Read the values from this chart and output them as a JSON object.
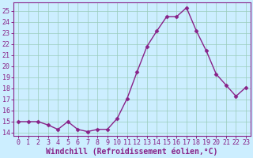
{
  "x": [
    0,
    1,
    2,
    3,
    4,
    5,
    6,
    7,
    8,
    9,
    10,
    11,
    12,
    13,
    14,
    15,
    16,
    17,
    18,
    19,
    20,
    21,
    22,
    23
  ],
  "y": [
    15,
    15,
    15,
    14.7,
    14.3,
    15,
    14.3,
    14.1,
    14.3,
    14.3,
    15.3,
    17.1,
    19.5,
    21.8,
    23.2,
    24.5,
    24.5,
    25.3,
    23.2,
    21.4,
    19.3,
    18.3,
    17.3,
    18.1
  ],
  "line_color": "#882288",
  "marker": "D",
  "marker_size": 2.5,
  "bg_color": "#cceeff",
  "grid_color": "#99ccbb",
  "xlabel": "Windchill (Refroidissement éolien,°C)",
  "xlim": [
    -0.5,
    23.5
  ],
  "ylim": [
    13.7,
    25.8
  ],
  "yticks": [
    14,
    15,
    16,
    17,
    18,
    19,
    20,
    21,
    22,
    23,
    24,
    25
  ],
  "xticks": [
    0,
    1,
    2,
    3,
    4,
    5,
    6,
    7,
    8,
    9,
    10,
    11,
    12,
    13,
    14,
    15,
    16,
    17,
    18,
    19,
    20,
    21,
    22,
    23
  ],
  "xlabel_fontsize": 7,
  "tick_fontsize": 6,
  "label_color": "#882288",
  "spine_color": "#882288",
  "line_width": 1.0
}
